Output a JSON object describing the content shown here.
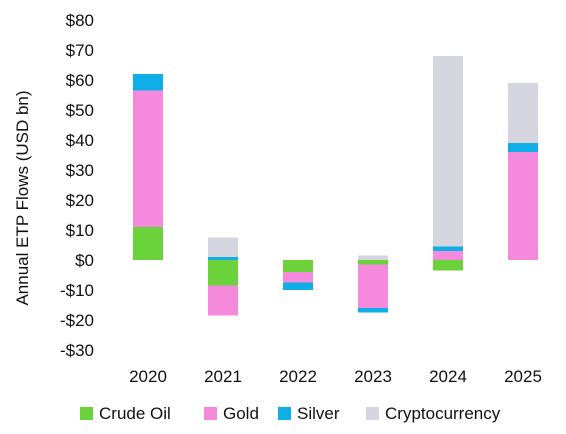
{
  "chart_data": {
    "type": "bar",
    "stacked": true,
    "title": "",
    "xlabel": "",
    "ylabel": "Annual ETP Flows (USD bn)",
    "ylim": [
      -30,
      80
    ],
    "yticks": [
      80,
      70,
      60,
      50,
      40,
      30,
      20,
      10,
      0,
      -10,
      -20,
      -30
    ],
    "ytick_labels": [
      "$80",
      "$70",
      "$60",
      "$50",
      "$40",
      "$30",
      "$20",
      "$10",
      "$0",
      "-$10",
      "-$20",
      "-$30"
    ],
    "grid": false,
    "legend_position": "bottom",
    "categories": [
      "2020",
      "2021",
      "2022",
      "2023",
      "2024",
      "2025"
    ],
    "series": [
      {
        "name": "Crude Oil",
        "color": "#6cd23c",
        "values": [
          11,
          -8.5,
          -4,
          -1.5,
          -3.5,
          0
        ]
      },
      {
        "name": "Gold",
        "color": "#f589dc",
        "values": [
          45.5,
          -10,
          -3.5,
          -14.5,
          3,
          36
        ]
      },
      {
        "name": "Silver",
        "color": "#10aee6",
        "values": [
          5.5,
          1,
          -2.5,
          -1.5,
          1.5,
          3
        ]
      },
      {
        "name": "Cryptocurrency",
        "color": "#d6d6e0",
        "values": [
          0,
          6.5,
          0,
          1.5,
          63.5,
          20
        ]
      }
    ]
  }
}
